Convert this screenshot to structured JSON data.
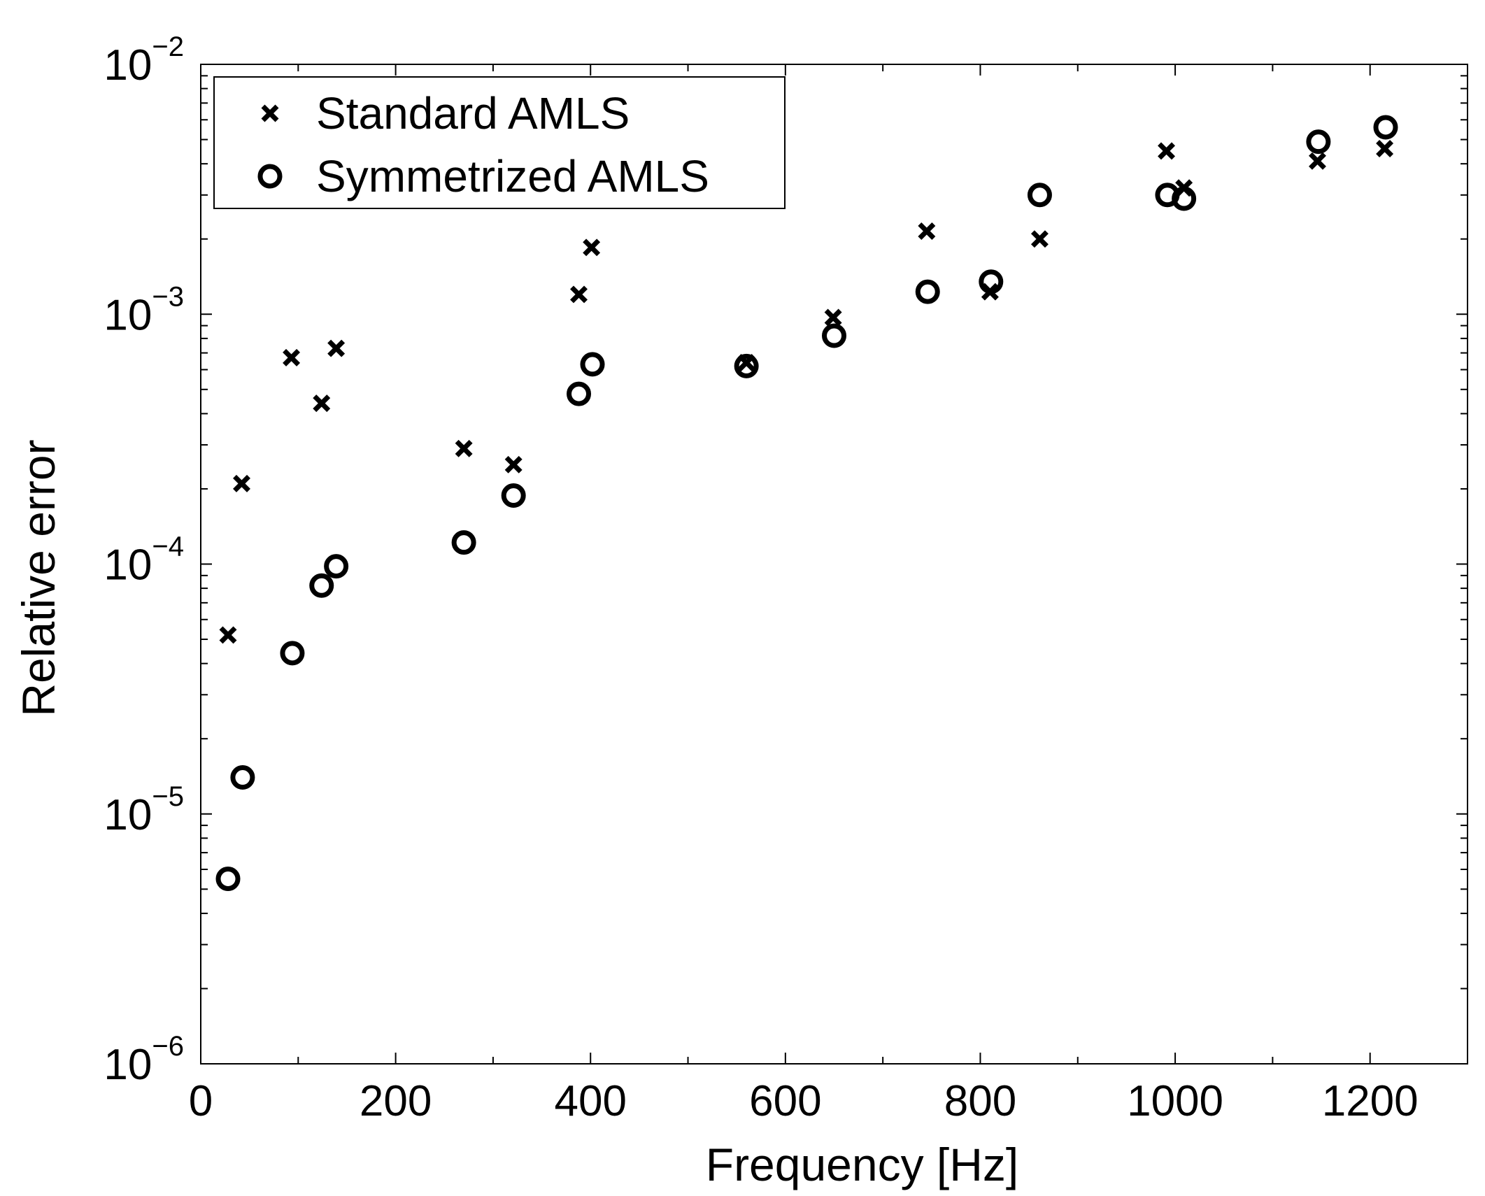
{
  "chart_data": {
    "type": "scatter",
    "xlabel": "Frequency [Hz]",
    "ylabel": "Relative error",
    "xlim": [
      0,
      1300
    ],
    "ylim": [
      1e-06,
      0.01
    ],
    "yscale": "log",
    "grid": false,
    "legend": "top-left",
    "x_ticks": [
      0,
      200,
      400,
      600,
      800,
      1000,
      1200
    ],
    "x_tick_labels": [
      "0",
      "200",
      "400",
      "600",
      "800",
      "1000",
      "1200"
    ],
    "y_ticks": [
      1e-06,
      1e-05,
      0.0001,
      0.001,
      0.01
    ],
    "y_tick_bases": [
      "10",
      "10",
      "10",
      "10",
      "10"
    ],
    "y_tick_exponents": [
      "−6",
      "−5",
      "−4",
      "−3",
      "−2"
    ],
    "series": [
      {
        "name": "Standard AMLS",
        "marker": "x",
        "color": "#000000",
        "points": [
          [
            28,
            5.2e-05
          ],
          [
            42,
            0.00021
          ],
          [
            93,
            0.00067
          ],
          [
            124,
            0.00044
          ],
          [
            139,
            0.00073
          ],
          [
            270,
            0.00029
          ],
          [
            321,
            0.00025
          ],
          [
            388,
            0.0012
          ],
          [
            401,
            0.00185
          ],
          [
            560,
            0.00064
          ],
          [
            649,
            0.00097
          ],
          [
            745,
            0.00215
          ],
          [
            810,
            0.00123
          ],
          [
            861,
            0.002
          ],
          [
            991,
            0.0045
          ],
          [
            1009,
            0.0032
          ],
          [
            1146,
            0.0041
          ],
          [
            1215,
            0.0046
          ]
        ]
      },
      {
        "name": "Symmetrized AMLS",
        "marker": "o",
        "color": "#000000",
        "points": [
          [
            28,
            5.5e-06
          ],
          [
            43,
            1.4e-05
          ],
          [
            94,
            4.4e-05
          ],
          [
            124,
            8.2e-05
          ],
          [
            139,
            9.8e-05
          ],
          [
            270,
            0.000122
          ],
          [
            321,
            0.000188
          ],
          [
            388,
            0.00048
          ],
          [
            402,
            0.00063
          ],
          [
            560,
            0.00062
          ],
          [
            650,
            0.00082
          ],
          [
            746,
            0.00123
          ],
          [
            811,
            0.00135
          ],
          [
            861,
            0.003
          ],
          [
            992,
            0.003
          ],
          [
            1009,
            0.0029
          ],
          [
            1147,
            0.0049
          ],
          [
            1216,
            0.0056
          ]
        ]
      }
    ]
  }
}
